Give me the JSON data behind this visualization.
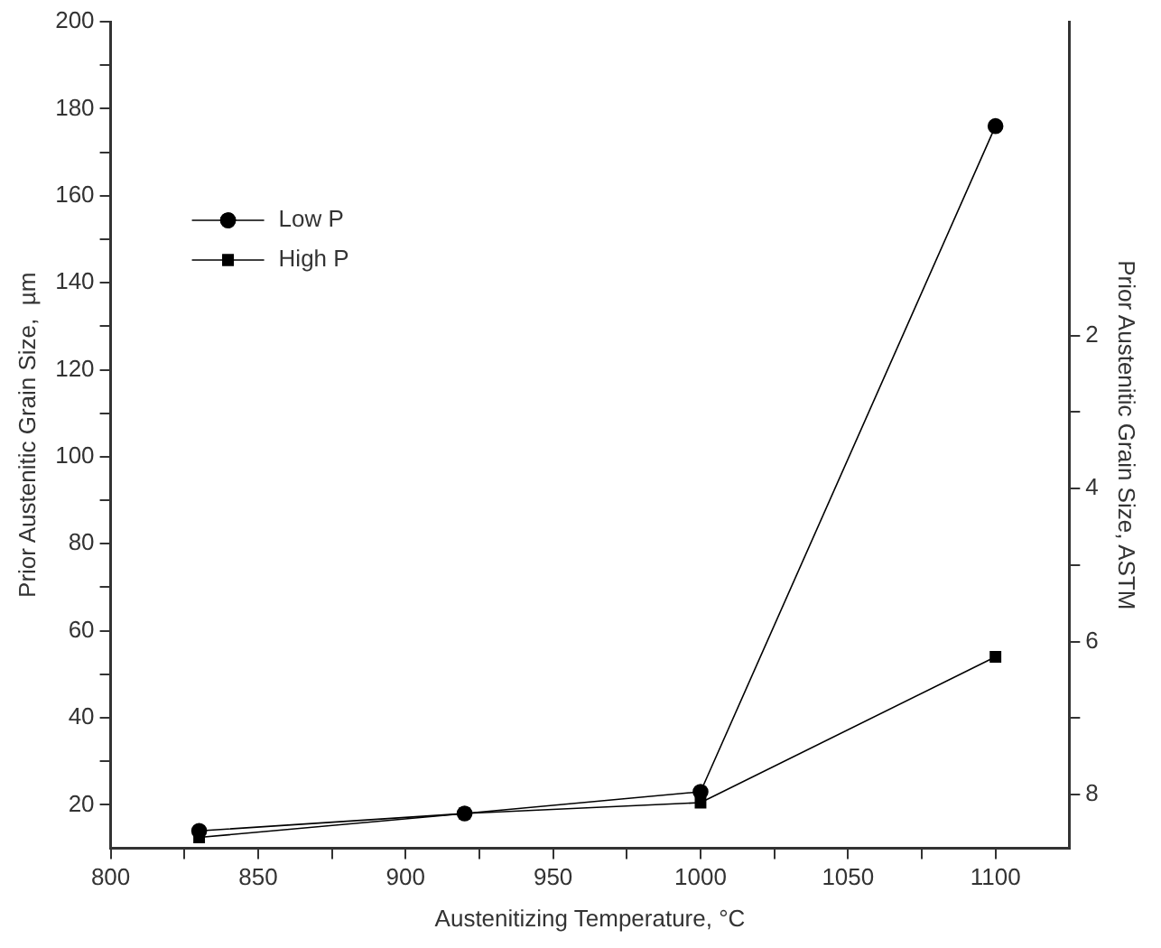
{
  "chart_data": {
    "type": "line",
    "xlabel": "Austenitizing Temperature, °C",
    "ylabel": "Prior Austenitic Grain Size,  µm",
    "y2label": "Prior Austenitic Grain Size, ASTM",
    "x": [
      830,
      920,
      1000,
      1100
    ],
    "series": [
      {
        "name": "Low P",
        "color": "#000000",
        "marker": "circle",
        "values": [
          14,
          18,
          23,
          176
        ]
      },
      {
        "name": "High P",
        "color": "#000000",
        "marker": "square",
        "values": [
          12.5,
          18,
          20.5,
          54
        ]
      }
    ],
    "xlim": [
      800,
      1125
    ],
    "xticks": [
      800,
      {
        "value": 825,
        "label": null
      },
      850,
      {
        "value": 875,
        "label": null
      },
      900,
      {
        "value": 925,
        "label": null
      },
      950,
      {
        "value": 975,
        "label": null
      },
      1000,
      {
        "value": 1025,
        "label": null
      },
      1050,
      {
        "value": 1075,
        "label": null
      },
      1100
    ],
    "ylim": [
      10,
      200
    ],
    "yticks": [
      20,
      {
        "value": 30,
        "label": null
      },
      40,
      {
        "value": 50,
        "label": null
      },
      60,
      {
        "value": 70,
        "label": null
      },
      80,
      {
        "value": 90,
        "label": null
      },
      100,
      {
        "value": 110,
        "label": null
      },
      120,
      {
        "value": 130,
        "label": null
      },
      140,
      {
        "value": 150,
        "label": null
      },
      160,
      {
        "value": 170,
        "label": null
      },
      180,
      {
        "value": 190,
        "label": null
      },
      200
    ],
    "y2lim": [
      8.7,
      -2.1
    ],
    "y2ticks": [
      2,
      {
        "value": 3,
        "label": null
      },
      4,
      {
        "value": 5,
        "label": null
      },
      6,
      {
        "value": 7,
        "label": null
      },
      8
    ],
    "grid": false,
    "legend": "top left",
    "line_style": "solid"
  }
}
